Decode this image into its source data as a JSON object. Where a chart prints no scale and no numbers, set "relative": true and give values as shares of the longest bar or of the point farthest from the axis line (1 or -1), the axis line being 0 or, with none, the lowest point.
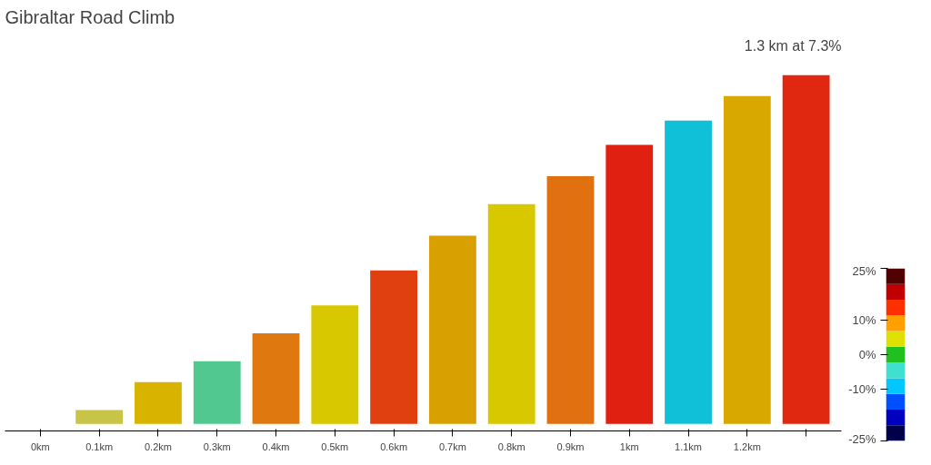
{
  "chart_data": {
    "type": "bar",
    "title": "Gibraltar Road Climb",
    "subtitle": "1.3 km at 7.3%",
    "relative": true,
    "categories": [
      "0km",
      "0.1km",
      "0.2km",
      "0.3km",
      "0.4km",
      "0.5km",
      "0.6km",
      "0.7km",
      "0.8km",
      "0.9km",
      "1km",
      "1.1km",
      "1.2km",
      null
    ],
    "values": [
      0,
      0.04,
      0.12,
      0.18,
      0.26,
      0.34,
      0.44,
      0.54,
      0.63,
      0.71,
      0.8,
      0.87,
      0.94,
      1
    ],
    "colors": [
      "#d0d0d0",
      "#c8c448",
      "#d8b400",
      "#50c890",
      "#e07810",
      "#d8c800",
      "#e04010",
      "#d8a000",
      "#d8c800",
      "#e07010",
      "#e02010",
      "#10c0d8",
      "#d8a800",
      "#e02810"
    ],
    "clim": [
      -25,
      25
    ],
    "cticks": [
      {
        "value": 25,
        "label": "25%"
      },
      {
        "value": 10,
        "label": "10%"
      },
      {
        "value": 0,
        "label": "0%"
      },
      {
        "value": -10,
        "label": "-10%"
      },
      {
        "value": -25,
        "label": "-25%"
      }
    ],
    "tick_labels": "x",
    "grid": false
  }
}
